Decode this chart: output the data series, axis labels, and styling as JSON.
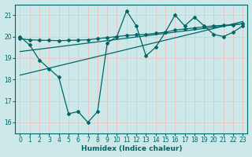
{
  "xlabel": "Humidex (Indice chaleur)",
  "bg_color": "#cce8e8",
  "grid_color": "#e8c8c8",
  "line_color": "#006666",
  "xlim": [
    -0.5,
    23.5
  ],
  "ylim": [
    15.5,
    21.5
  ],
  "xticks": [
    0,
    1,
    2,
    3,
    4,
    5,
    6,
    7,
    8,
    9,
    10,
    11,
    12,
    13,
    14,
    15,
    16,
    17,
    18,
    19,
    20,
    21,
    22,
    23
  ],
  "yticks": [
    16,
    17,
    18,
    19,
    20,
    21
  ],
  "line1_x": [
    0,
    1,
    2,
    3,
    4,
    5,
    6,
    7,
    8,
    9,
    10,
    11,
    12,
    13,
    14,
    15,
    16,
    17,
    18,
    19,
    20,
    21,
    22,
    23
  ],
  "line1_y": [
    20.0,
    19.6,
    18.9,
    18.5,
    18.1,
    16.4,
    16.5,
    16.0,
    16.5,
    19.7,
    20.0,
    21.2,
    20.5,
    19.1,
    19.5,
    20.2,
    21.0,
    20.5,
    20.9,
    20.5,
    20.1,
    20.0,
    20.2,
    20.5
  ],
  "line2_x": [
    0,
    1,
    2,
    3,
    4,
    5,
    6,
    7,
    8,
    9,
    10,
    11,
    12,
    13,
    14,
    15,
    16,
    17,
    18,
    19,
    20,
    21,
    22,
    23
  ],
  "line2_y": [
    19.9,
    19.85,
    19.83,
    19.82,
    19.81,
    19.82,
    19.83,
    19.85,
    19.9,
    19.95,
    20.0,
    20.05,
    20.08,
    20.1,
    20.15,
    20.2,
    20.3,
    20.35,
    20.4,
    20.45,
    20.5,
    20.52,
    20.55,
    20.6
  ],
  "line3_x": [
    0,
    23
  ],
  "line3_y": [
    19.3,
    20.6
  ],
  "line4_x": [
    0,
    23
  ],
  "line4_y": [
    18.2,
    20.7
  ]
}
